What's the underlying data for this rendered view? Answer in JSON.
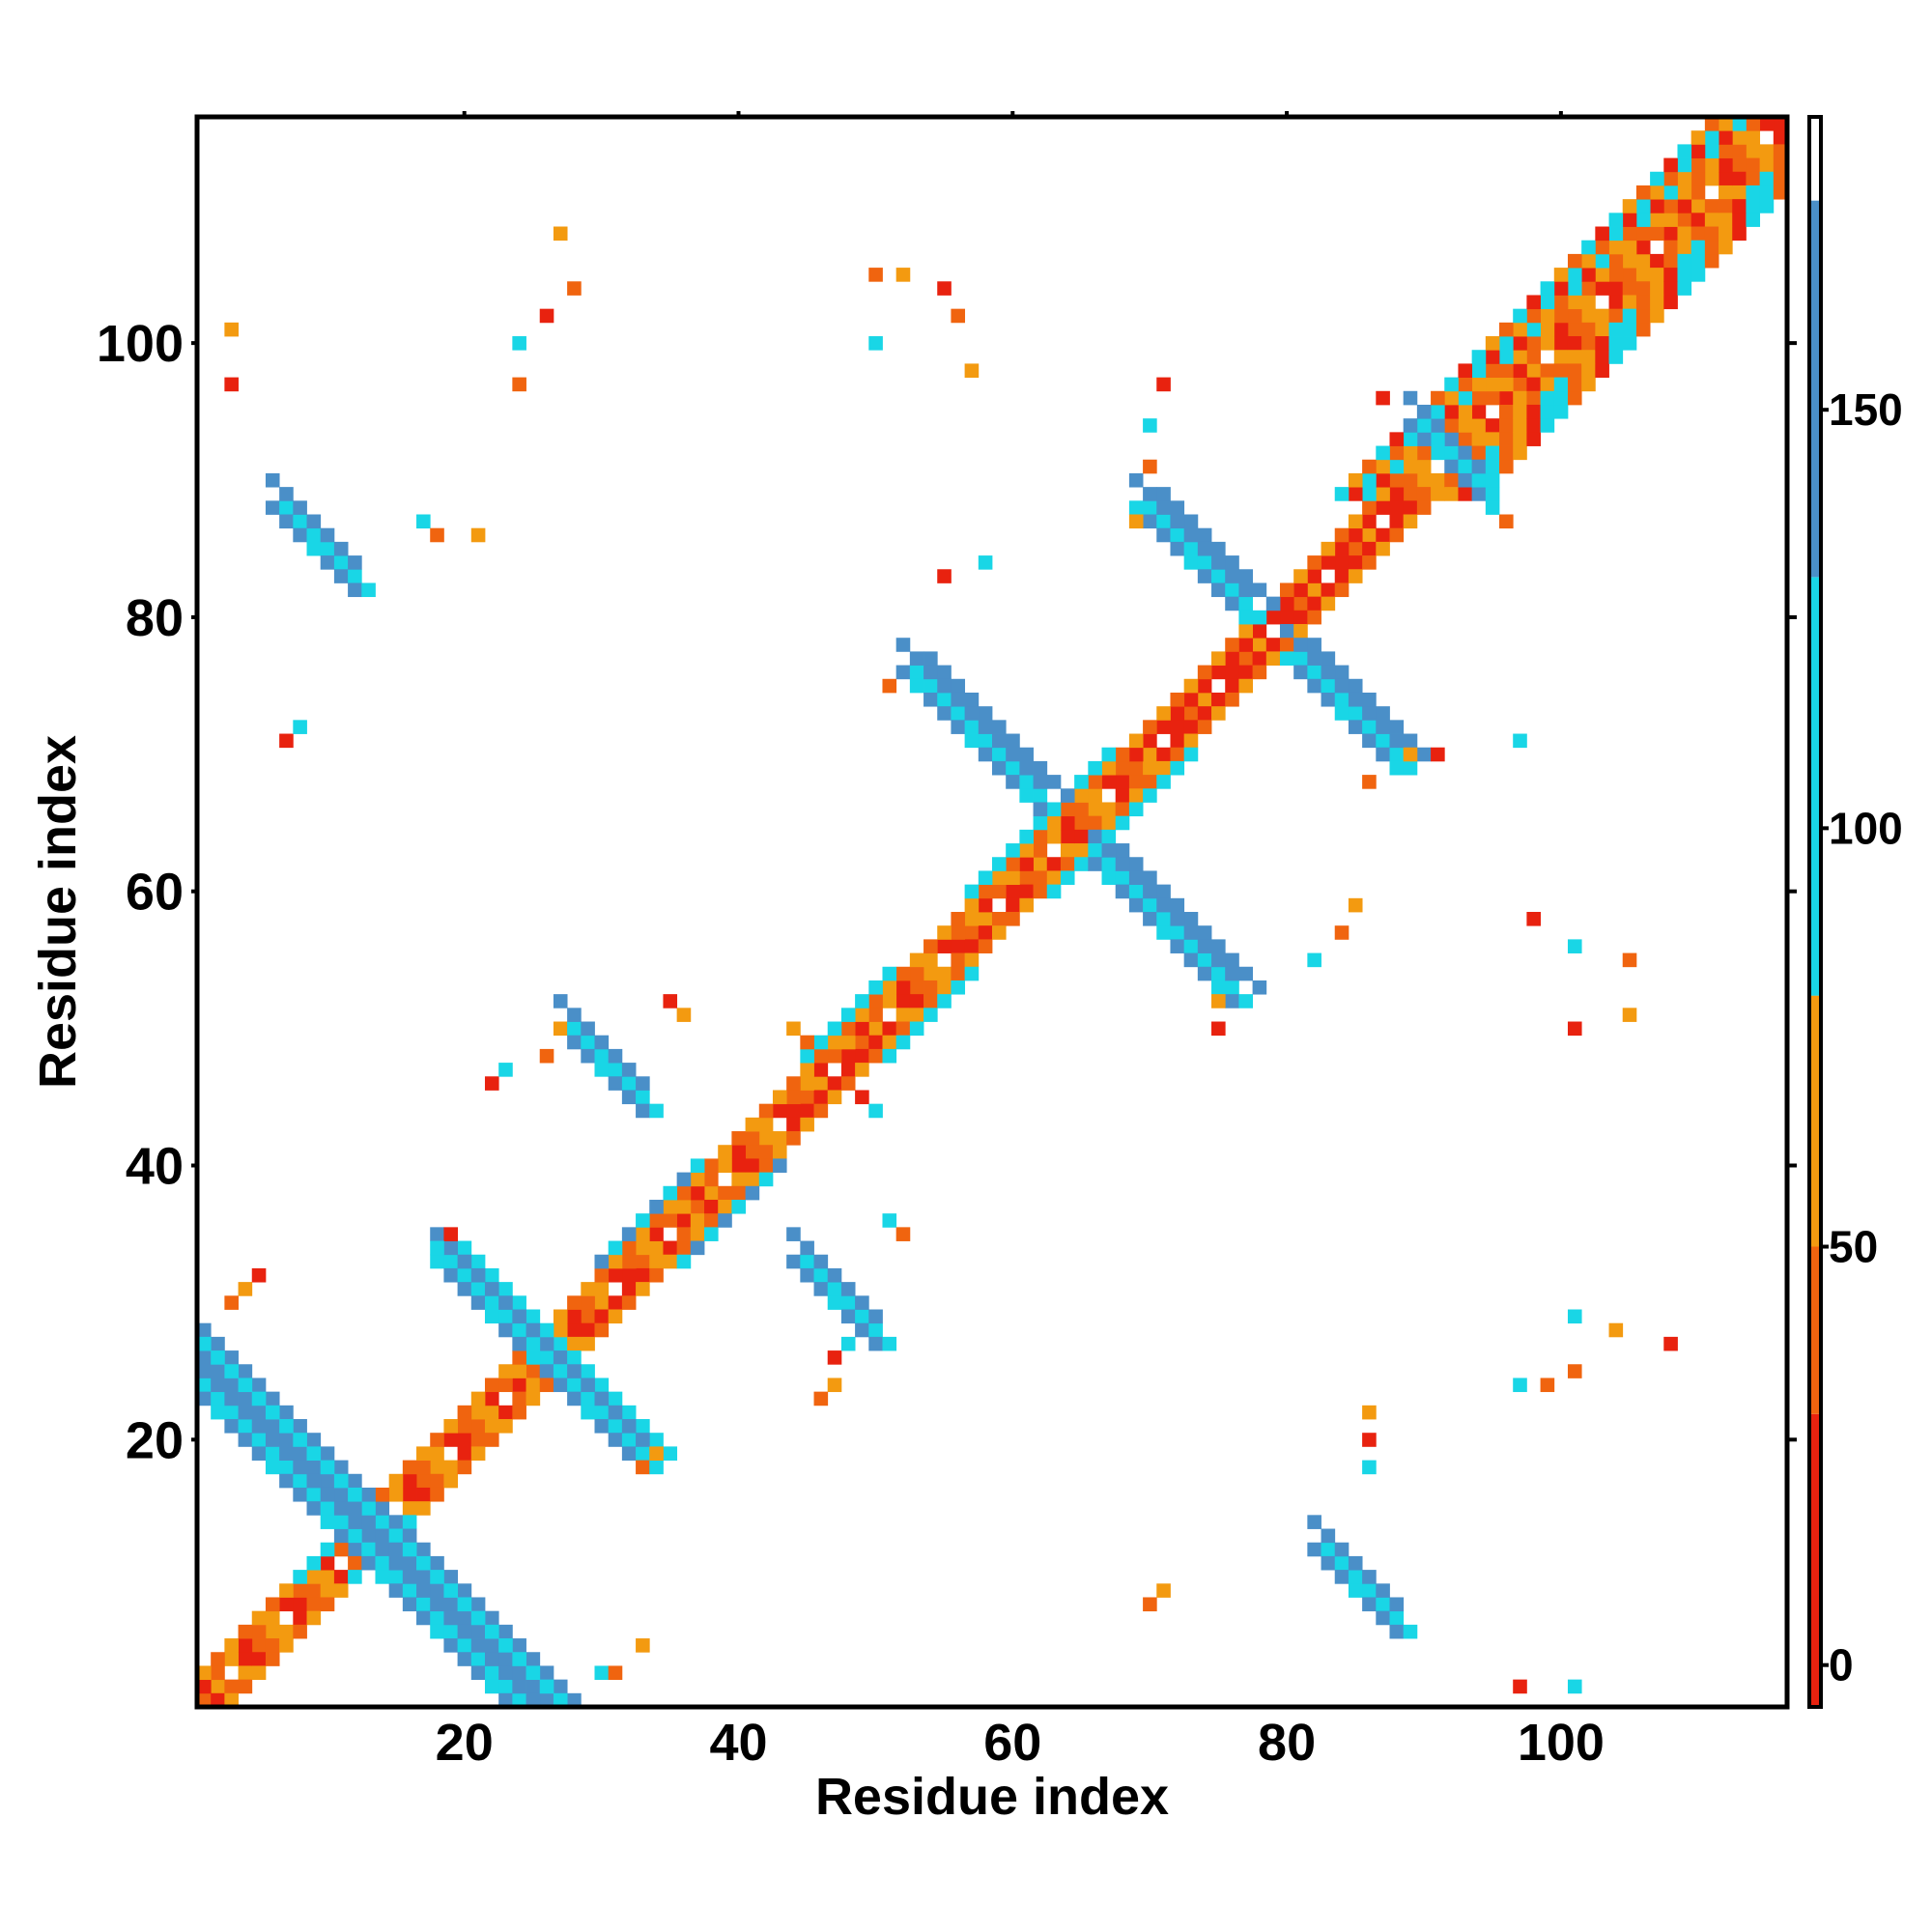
{
  "chart_data": {
    "type": "heatmap",
    "title": "",
    "xlabel": "Residue index",
    "ylabel": "Residue index",
    "xlim": [
      0.5,
      116.5
    ],
    "ylim": [
      0.5,
      116.5
    ],
    "x_ticks": [
      20,
      40,
      60,
      80,
      100
    ],
    "y_ticks": [
      20,
      40,
      60,
      80,
      100
    ],
    "grid": false,
    "colorbar": {
      "range": [
        -5,
        185
      ],
      "ticks": [
        0,
        50,
        100,
        150
      ],
      "position": "right",
      "stops": [
        {
          "from": -5,
          "to": 30,
          "color": "#e8220f"
        },
        {
          "from": 30,
          "to": 50,
          "color": "#f0640f"
        },
        {
          "from": 50,
          "to": 80,
          "color": "#f39a10"
        },
        {
          "from": 80,
          "to": 130,
          "color": "#19d6e6"
        },
        {
          "from": 130,
          "to": 175,
          "color": "#4a8fc8"
        },
        {
          "from": 175,
          "to": 185,
          "color": "#ffffff"
        }
      ]
    },
    "features": [
      {
        "kind": "diag",
        "s": 1,
        "e": 116,
        "pal": [
          "#e8220f",
          "#f0640f",
          "#f39a10",
          "#ffffff"
        ]
      },
      {
        "kind": "diag",
        "s": 1,
        "e": 116,
        "off": 1,
        "pal": [
          "#f0640f",
          "#f39a10",
          "#e8220f"
        ]
      },
      {
        "kind": "diag",
        "s": 1,
        "e": 116,
        "off": -1,
        "pal": [
          "#f39a10",
          "#e8220f",
          "#f0640f"
        ]
      },
      {
        "kind": "diag",
        "s": 1,
        "e": 116,
        "off": 2,
        "pal": [
          "#f39a10",
          "#f0640f"
        ]
      },
      {
        "kind": "diag",
        "s": 1,
        "e": 116,
        "off": -2,
        "pal": [
          "#f0640f",
          "#f39a10"
        ]
      },
      {
        "kind": "diag",
        "s": 10,
        "e": 14,
        "off": 2,
        "w": 1,
        "pal": [
          "#19d6e6"
        ]
      },
      {
        "kind": "diag",
        "s": 10,
        "e": 14,
        "off": -2,
        "w": 1,
        "pal": [
          "#19d6e6"
        ]
      },
      {
        "kind": "diag",
        "s": 33,
        "e": 40,
        "off": 3,
        "w": 1,
        "pal": [
          "#19d6e6",
          "#4a8fc8"
        ]
      },
      {
        "kind": "diag",
        "s": 33,
        "e": 40,
        "off": -3,
        "w": 1,
        "pal": [
          "#19d6e6",
          "#4a8fc8"
        ]
      },
      {
        "kind": "diag",
        "s": 48,
        "e": 54,
        "off": 3,
        "w": 1,
        "pal": [
          "#19d6e6"
        ]
      },
      {
        "kind": "diag",
        "s": 48,
        "e": 54,
        "off": -3,
        "w": 1,
        "pal": [
          "#19d6e6"
        ]
      },
      {
        "kind": "diag",
        "s": 60,
        "e": 70,
        "off": 3,
        "w": 1,
        "pal": [
          "#19d6e6"
        ]
      },
      {
        "kind": "diag",
        "s": 60,
        "e": 70,
        "off": -3,
        "w": 1,
        "pal": [
          "#19d6e6"
        ]
      },
      {
        "kind": "diag",
        "s": 55,
        "e": 62,
        "off": 1,
        "pal": [
          "#e8220f",
          "#e8220f",
          "#f0640f"
        ]
      },
      {
        "kind": "diag",
        "s": 70,
        "e": 88,
        "off": 1,
        "pal": [
          "#e8220f"
        ]
      },
      {
        "kind": "diag",
        "s": 70,
        "e": 88,
        "off": -1,
        "pal": [
          "#e8220f"
        ]
      },
      {
        "kind": "diag",
        "s": 44,
        "e": 50,
        "off": 1,
        "pal": [
          "#e8220f"
        ]
      },
      {
        "kind": "diag",
        "s": 28,
        "e": 32,
        "off": 1,
        "pal": [
          "#e8220f"
        ]
      },
      {
        "kind": "diag",
        "s": 89,
        "e": 116,
        "off": 3,
        "w": 3,
        "pal": [
          "#19d6e6",
          "#f0640f",
          "#f39a10",
          "#e8220f",
          "#19d6e6"
        ]
      },
      {
        "kind": "diag",
        "s": 89,
        "e": 116,
        "off": -3,
        "w": 3,
        "pal": [
          "#19d6e6",
          "#f39a10",
          "#f0640f",
          "#19d6e6",
          "#e8220f"
        ]
      },
      {
        "kind": "anti",
        "cx": 6,
        "cy": 18,
        "len": 9,
        "w": 6,
        "pal": [
          "#4a8fc8",
          "#19d6e6",
          "#4a8fc8"
        ]
      },
      {
        "kind": "anti",
        "cx": 18,
        "cy": 6,
        "len": 9,
        "w": 6,
        "pal": [
          "#4a8fc8",
          "#19d6e6",
          "#4a8fc8"
        ]
      },
      {
        "kind": "anti",
        "cx": 22,
        "cy": 29,
        "len": 4,
        "w": 4,
        "pal": [
          "#4a8fc8",
          "#19d6e6"
        ]
      },
      {
        "kind": "anti",
        "cx": 29,
        "cy": 22,
        "len": 4,
        "w": 4,
        "pal": [
          "#4a8fc8",
          "#19d6e6"
        ]
      },
      {
        "kind": "anti",
        "cx": 9,
        "cy": 85,
        "len": 3,
        "w": 3,
        "pal": [
          "#4a8fc8",
          "#19d6e6"
        ]
      },
      {
        "kind": "anti",
        "cx": 85,
        "cy": 9,
        "len": 3,
        "w": 3,
        "pal": [
          "#4a8fc8",
          "#19d6e6"
        ]
      },
      {
        "kind": "anti",
        "cx": 30,
        "cy": 47,
        "len": 3,
        "w": 3,
        "pal": [
          "#4a8fc8",
          "#19d6e6"
        ]
      },
      {
        "kind": "anti",
        "cx": 47,
        "cy": 30,
        "len": 3,
        "w": 3,
        "pal": [
          "#4a8fc8",
          "#19d6e6"
        ]
      },
      {
        "kind": "anti",
        "cx": 57,
        "cy": 71,
        "len": 5,
        "w": 4,
        "pal": [
          "#4a8fc8",
          "#19d6e6",
          "#4a8fc8"
        ]
      },
      {
        "kind": "anti",
        "cx": 71,
        "cy": 57,
        "len": 5,
        "w": 4,
        "pal": [
          "#4a8fc8",
          "#19d6e6",
          "#4a8fc8"
        ]
      },
      {
        "kind": "anti",
        "cx": 73,
        "cy": 84,
        "len": 4,
        "w": 4,
        "pal": [
          "#4a8fc8",
          "#19d6e6",
          "#4a8fc8"
        ]
      },
      {
        "kind": "anti",
        "cx": 84,
        "cy": 73,
        "len": 4,
        "w": 4,
        "pal": [
          "#4a8fc8",
          "#19d6e6",
          "#4a8fc8"
        ]
      },
      {
        "kind": "anti",
        "cx": 92,
        "cy": 91,
        "len": 2,
        "w": 3,
        "pal": [
          "#4a8fc8",
          "#19d6e6"
        ]
      },
      {
        "kind": "anti",
        "cx": 91,
        "cy": 92,
        "len": 2,
        "w": 3,
        "pal": [
          "#4a8fc8",
          "#19d6e6"
        ]
      },
      {
        "kind": "pts",
        "pal": [
          "#f0640f",
          "#f39a10",
          "#e8220f",
          "#19d6e6"
        ],
        "p": [
          [
            28,
            104
          ],
          [
            27,
            108
          ],
          [
            26,
            102
          ],
          [
            24,
            100
          ],
          [
            24,
            97
          ],
          [
            3,
            101
          ],
          [
            3,
            97
          ],
          [
            17,
            87
          ],
          [
            18,
            86
          ],
          [
            21,
            86
          ],
          [
            7,
            71
          ],
          [
            8,
            72
          ],
          [
            50,
            105
          ],
          [
            52,
            105
          ],
          [
            55,
            104
          ],
          [
            50,
            100
          ],
          [
            56,
            102
          ],
          [
            57,
            98
          ],
          [
            71,
            97
          ],
          [
            70,
            94
          ],
          [
            70,
            91
          ],
          [
            69,
            87
          ],
          [
            55,
            83
          ],
          [
            58,
            84
          ],
          [
            51,
            75
          ],
          [
            89,
            70
          ],
          [
            91,
            70
          ],
          [
            97,
            71
          ],
          [
            86,
            68
          ],
          [
            75,
            52
          ],
          [
            75,
            50
          ],
          [
            82,
            55
          ],
          [
            84,
            57
          ],
          [
            85,
            59
          ],
          [
            98,
            58
          ],
          [
            101,
            56
          ],
          [
            105,
            55
          ],
          [
            105,
            51
          ],
          [
            101,
            50
          ],
          [
            101,
            29
          ],
          [
            101,
            25
          ],
          [
            104,
            28
          ],
          [
            108,
            27
          ],
          [
            97,
            24
          ],
          [
            99,
            24
          ],
          [
            86,
            22
          ],
          [
            86,
            20
          ],
          [
            86,
            18
          ],
          [
            70,
            8
          ],
          [
            71,
            9
          ],
          [
            97,
            2
          ],
          [
            101,
            2
          ],
          [
            46,
            23
          ],
          [
            47,
            24
          ],
          [
            22,
            46
          ],
          [
            23,
            47
          ],
          [
            3,
            30
          ],
          [
            4,
            31
          ],
          [
            5,
            32
          ],
          [
            30,
            3
          ],
          [
            31,
            3
          ],
          [
            33,
            5
          ],
          [
            19,
            35
          ],
          [
            18,
            34
          ],
          [
            33,
            18
          ],
          [
            34,
            19
          ],
          [
            47,
            26
          ],
          [
            48,
            27
          ],
          [
            26,
            48
          ],
          [
            27,
            50
          ],
          [
            49,
            45
          ],
          [
            50,
            44
          ],
          [
            45,
            49
          ],
          [
            44,
            50
          ],
          [
            87,
            96
          ],
          [
            95,
            88
          ],
          [
            96,
            87
          ],
          [
            36,
            51
          ],
          [
            35,
            52
          ],
          [
            51,
            36
          ],
          [
            52,
            35
          ]
        ]
      }
    ]
  }
}
